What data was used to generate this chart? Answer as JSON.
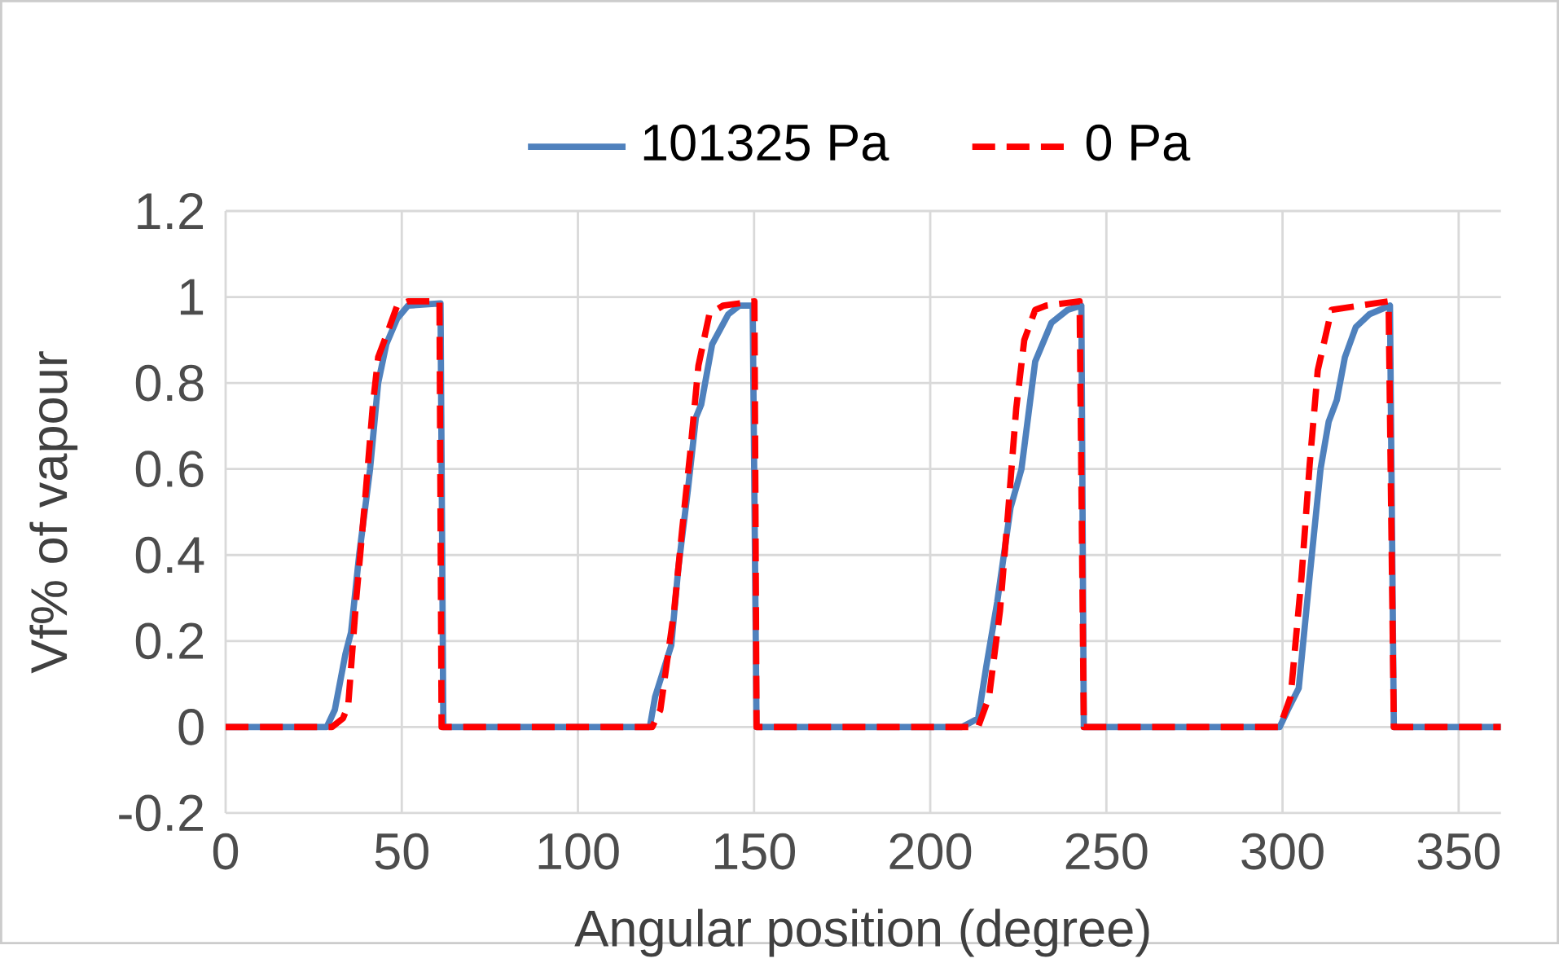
{
  "chart_data": {
    "type": "line",
    "xlabel": "Angular position (degree)",
    "ylabel": "Vf% of vapour",
    "xlim": [
      0,
      362
    ],
    "ylim": [
      -0.2,
      1.2
    ],
    "xticks": [
      0,
      50,
      100,
      150,
      200,
      250,
      300,
      350
    ],
    "yticks": [
      -0.2,
      0,
      0.2,
      0.4,
      0.6,
      0.8,
      1,
      1.2
    ],
    "grid": true,
    "legend": "top",
    "marker": "none",
    "series": [
      {
        "name": "101325 Pa",
        "color": "#4f81bd",
        "line_style": "solid",
        "x": [
          0,
          28.7,
          31,
          34,
          35.6,
          37.9,
          41,
          43.3,
          45.6,
          48.7,
          51.8,
          61,
          61.8,
          120.4,
          121.9,
          126.5,
          128.5,
          131.2,
          133.5,
          135,
          138.1,
          142.7,
          145.8,
          149.6,
          150.7,
          209,
          213.6,
          215.9,
          219,
          222.8,
          225.9,
          229.8,
          234.4,
          239,
          242.9,
          243.6,
          299.2,
          301.5,
          304.6,
          307.7,
          310.8,
          313.1,
          315.4,
          317.7,
          320.8,
          324.7,
          330.5,
          331.6,
          362
        ],
        "values": [
          0,
          0,
          0.04,
          0.17,
          0.22,
          0.4,
          0.6,
          0.8,
          0.89,
          0.95,
          0.98,
          0.985,
          0,
          0,
          0.07,
          0.19,
          0.37,
          0.55,
          0.72,
          0.75,
          0.89,
          0.96,
          0.98,
          0.98,
          0,
          0,
          0.02,
          0.14,
          0.29,
          0.51,
          0.6,
          0.85,
          0.94,
          0.97,
          0.98,
          0,
          0,
          0.04,
          0.09,
          0.35,
          0.6,
          0.71,
          0.76,
          0.86,
          0.93,
          0.96,
          0.98,
          0,
          0
        ]
      },
      {
        "name": "0 Pa",
        "color": "#ff0000",
        "line_style": "dashed",
        "x": [
          0,
          30.2,
          33.3,
          34.8,
          37.1,
          39.5,
          41.8,
          43.3,
          45.6,
          48.7,
          51.8,
          60.7,
          61.3,
          121.1,
          123.4,
          127.3,
          129.6,
          131.9,
          134.2,
          137.3,
          141.2,
          150.1,
          150.7,
          213.6,
          216.7,
          219.8,
          222.1,
          224.4,
          226.7,
          229.8,
          232.9,
          242.4,
          243.6,
          299.2,
          302.3,
          305.4,
          307.7,
          310,
          313.9,
          330.1,
          331.6,
          362
        ],
        "values": [
          0,
          0,
          0.02,
          0.05,
          0.3,
          0.52,
          0.75,
          0.86,
          0.91,
          0.98,
          0.99,
          0.99,
          0,
          0,
          0.04,
          0.27,
          0.46,
          0.64,
          0.84,
          0.96,
          0.98,
          0.99,
          0,
          0,
          0.07,
          0.27,
          0.5,
          0.74,
          0.9,
          0.97,
          0.98,
          0.99,
          0,
          0,
          0.07,
          0.35,
          0.61,
          0.83,
          0.97,
          0.99,
          0,
          0
        ]
      }
    ]
  }
}
